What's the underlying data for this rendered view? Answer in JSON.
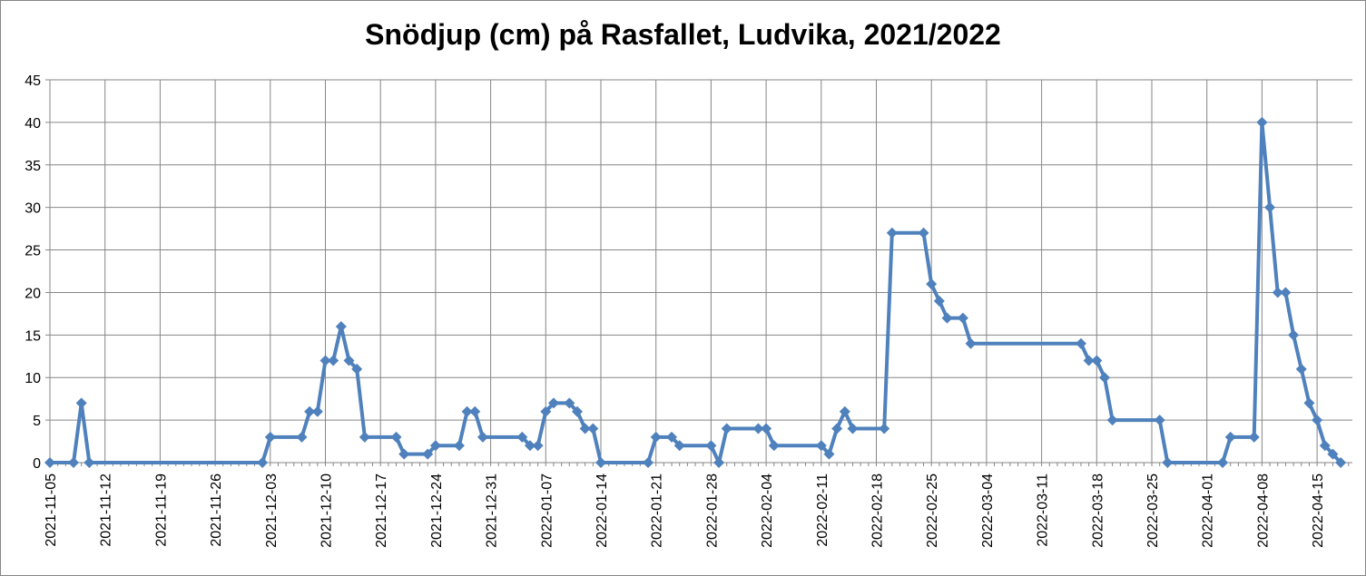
{
  "chart_data": {
    "type": "line",
    "title": "Snödjup (cm) på Rasfallet, Ludvika, 2021/2022",
    "xlabel": "",
    "ylabel": "",
    "xlim": [
      "2021-11-05",
      "2022-04-19"
    ],
    "ylim": [
      0,
      45
    ],
    "y_ticks": [
      0,
      5,
      10,
      15,
      20,
      25,
      30,
      35,
      40,
      45
    ],
    "x_tick_labels": [
      "2021-11-05",
      "2021-11-12",
      "2021-11-19",
      "2021-11-26",
      "2021-12-03",
      "2021-12-10",
      "2021-12-17",
      "2021-12-24",
      "2021-12-31",
      "2022-01-07",
      "2022-01-14",
      "2022-01-21",
      "2022-01-28",
      "2022-02-04",
      "2022-02-11",
      "2022-02-18",
      "2022-02-25",
      "2022-03-04",
      "2022-03-11",
      "2022-03-18",
      "2022-03-25",
      "2022-04-01",
      "2022-04-08",
      "2022-04-15"
    ],
    "grid": true,
    "legend": "none",
    "color": "#4F81BD",
    "series": [
      {
        "points": [
          [
            "2021-11-05",
            0
          ],
          [
            "2021-11-08",
            0
          ],
          [
            "2021-11-09",
            7
          ],
          [
            "2021-11-10",
            0
          ],
          [
            "2021-12-02",
            0
          ],
          [
            "2021-12-03",
            3
          ],
          [
            "2021-12-07",
            3
          ],
          [
            "2021-12-08",
            6
          ],
          [
            "2021-12-09",
            6
          ],
          [
            "2021-12-10",
            12
          ],
          [
            "2021-12-11",
            12
          ],
          [
            "2021-12-12",
            16
          ],
          [
            "2021-12-13",
            12
          ],
          [
            "2021-12-14",
            11
          ],
          [
            "2021-12-15",
            3
          ],
          [
            "2021-12-19",
            3
          ],
          [
            "2021-12-20",
            1
          ],
          [
            "2021-12-23",
            1
          ],
          [
            "2021-12-24",
            2
          ],
          [
            "2021-12-27",
            2
          ],
          [
            "2021-12-28",
            6
          ],
          [
            "2021-12-29",
            6
          ],
          [
            "2021-12-30",
            3
          ],
          [
            "2022-01-04",
            3
          ],
          [
            "2022-01-05",
            2
          ],
          [
            "2022-01-06",
            2
          ],
          [
            "2022-01-07",
            6
          ],
          [
            "2022-01-08",
            7
          ],
          [
            "2022-01-10",
            7
          ],
          [
            "2022-01-11",
            6
          ],
          [
            "2022-01-12",
            4
          ],
          [
            "2022-01-13",
            4
          ],
          [
            "2022-01-14",
            0
          ],
          [
            "2022-01-20",
            0
          ],
          [
            "2022-01-21",
            3
          ],
          [
            "2022-01-23",
            3
          ],
          [
            "2022-01-24",
            2
          ],
          [
            "2022-01-28",
            2
          ],
          [
            "2022-01-29",
            0
          ],
          [
            "2022-01-30",
            4
          ],
          [
            "2022-02-03",
            4
          ],
          [
            "2022-02-04",
            4
          ],
          [
            "2022-02-05",
            2
          ],
          [
            "2022-02-11",
            2
          ],
          [
            "2022-02-12",
            1
          ],
          [
            "2022-02-13",
            4
          ],
          [
            "2022-02-14",
            6
          ],
          [
            "2022-02-15",
            4
          ],
          [
            "2022-02-19",
            4
          ],
          [
            "2022-02-20",
            27
          ],
          [
            "2022-02-24",
            27
          ],
          [
            "2022-02-25",
            21
          ],
          [
            "2022-02-26",
            19
          ],
          [
            "2022-02-27",
            17
          ],
          [
            "2022-03-01",
            17
          ],
          [
            "2022-03-02",
            14
          ],
          [
            "2022-03-16",
            14
          ],
          [
            "2022-03-17",
            12
          ],
          [
            "2022-03-18",
            12
          ],
          [
            "2022-03-19",
            10
          ],
          [
            "2022-03-20",
            5
          ],
          [
            "2022-03-26",
            5
          ],
          [
            "2022-03-27",
            0
          ],
          [
            "2022-04-03",
            0
          ],
          [
            "2022-04-04",
            3
          ],
          [
            "2022-04-07",
            3
          ],
          [
            "2022-04-08",
            40
          ],
          [
            "2022-04-09",
            30
          ],
          [
            "2022-04-10",
            20
          ],
          [
            "2022-04-11",
            20
          ],
          [
            "2022-04-12",
            15
          ],
          [
            "2022-04-13",
            11
          ],
          [
            "2022-04-14",
            7
          ],
          [
            "2022-04-15",
            5
          ],
          [
            "2022-04-16",
            2
          ],
          [
            "2022-04-17",
            1
          ],
          [
            "2022-04-18",
            0
          ]
        ]
      }
    ]
  }
}
